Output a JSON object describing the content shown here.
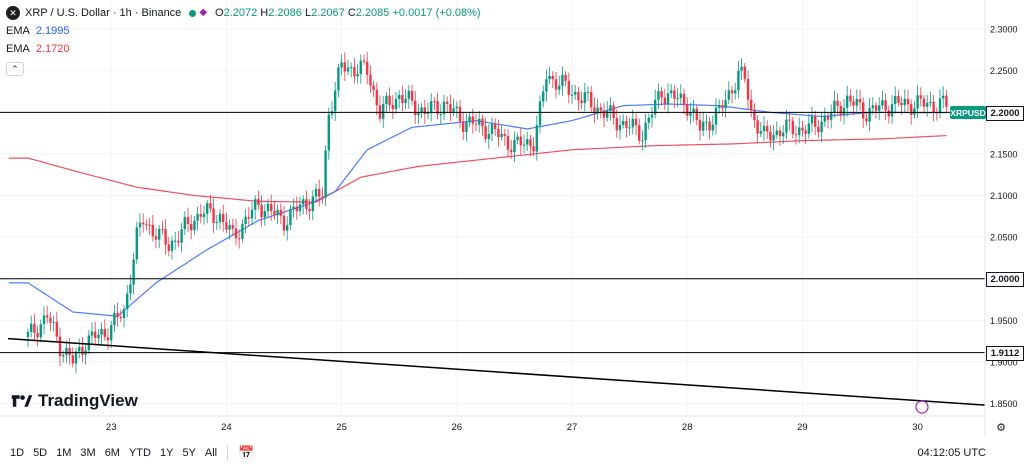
{
  "header": {
    "symbol_title": "XRP / U.S. Dollar · 1h · Binance",
    "open_label": "O",
    "open": "2.2072",
    "high_label": "H",
    "high": "2.2086",
    "low_label": "L",
    "low": "2.2067",
    "close_label": "C",
    "close": "2.2085",
    "change": "+0.0017 (+0.08%)",
    "ema_fast_label": "EMA",
    "ema_fast_value": "2.1995",
    "ema_slow_label": "EMA",
    "ema_slow_value": "2.1720",
    "logo_icon": "xrp-logo-icon"
  },
  "symbol_tag": "XRPUSD",
  "price_tags": [
    {
      "value": "2.2000",
      "price": 2.2
    },
    {
      "value": "2.0000",
      "price": 2.0
    },
    {
      "value": "1.9112",
      "price": 1.9112
    }
  ],
  "brand": "TradingView",
  "toolbar": {
    "timeframes": [
      "1D",
      "5D",
      "1M",
      "3M",
      "6M",
      "YTD",
      "1Y",
      "5Y",
      "All"
    ],
    "clock": "04:12:05 UTC"
  },
  "colors": {
    "up": "#089981",
    "down": "#f23645",
    "ema_fast": "#4a7dff",
    "ema_slow": "#f0505f",
    "hline": "#000000"
  },
  "chart_data": {
    "type": "candlestick",
    "title": "XRP / U.S. Dollar · 1h · Binance",
    "ylim": [
      1.835,
      2.335
    ],
    "y_ticks": [
      "2.3000",
      "2.2500",
      "2.2000",
      "2.1500",
      "2.1000",
      "2.0500",
      "2.0000",
      "1.9500",
      "1.9000",
      "1.8500"
    ],
    "x_ticks": [
      "23",
      "24",
      "25",
      "26",
      "27",
      "28",
      "29",
      "30"
    ],
    "x_tick_index": [
      26,
      62,
      98,
      134,
      170,
      206,
      242,
      278
    ],
    "n_bars": 296,
    "horizontal_lines": [
      2.2,
      2.0,
      1.9112
    ],
    "trendline": {
      "from": [
        0,
        1.928
      ],
      "to": [
        316,
        1.848
      ]
    },
    "candle_keypoints": [
      [
        0,
        1.93
      ],
      [
        6,
        1.955
      ],
      [
        10,
        1.92
      ],
      [
        14,
        1.9
      ],
      [
        18,
        1.925
      ],
      [
        24,
        1.935
      ],
      [
        30,
        1.96
      ],
      [
        34,
        2.05
      ],
      [
        36,
        2.07
      ],
      [
        44,
        2.04
      ],
      [
        54,
        2.08
      ],
      [
        60,
        2.075
      ],
      [
        64,
        2.05
      ],
      [
        72,
        2.09
      ],
      [
        80,
        2.07
      ],
      [
        86,
        2.09
      ],
      [
        92,
        2.1
      ],
      [
        94,
        2.2
      ],
      [
        98,
        2.255
      ],
      [
        106,
        2.25
      ],
      [
        110,
        2.2
      ],
      [
        116,
        2.22
      ],
      [
        124,
        2.2
      ],
      [
        130,
        2.21
      ],
      [
        136,
        2.19
      ],
      [
        144,
        2.18
      ],
      [
        152,
        2.16
      ],
      [
        158,
        2.165
      ],
      [
        160,
        2.2
      ],
      [
        162,
        2.245
      ],
      [
        168,
        2.23
      ],
      [
        176,
        2.21
      ],
      [
        184,
        2.19
      ],
      [
        192,
        2.175
      ],
      [
        198,
        2.225
      ],
      [
        206,
        2.21
      ],
      [
        210,
        2.18
      ],
      [
        216,
        2.2
      ],
      [
        222,
        2.245
      ],
      [
        224,
        2.24
      ],
      [
        226,
        2.2
      ],
      [
        230,
        2.17
      ],
      [
        236,
        2.18
      ],
      [
        244,
        2.18
      ],
      [
        250,
        2.195
      ],
      [
        256,
        2.215
      ],
      [
        262,
        2.2
      ],
      [
        270,
        2.21
      ],
      [
        280,
        2.21
      ],
      [
        287,
        2.2085
      ]
    ],
    "ema_fast_keypoints": [
      [
        0,
        1.995
      ],
      [
        14,
        1.96
      ],
      [
        28,
        1.955
      ],
      [
        40,
        1.995
      ],
      [
        56,
        2.035
      ],
      [
        72,
        2.07
      ],
      [
        88,
        2.09
      ],
      [
        96,
        2.105
      ],
      [
        106,
        2.155
      ],
      [
        120,
        2.182
      ],
      [
        140,
        2.19
      ],
      [
        156,
        2.18
      ],
      [
        170,
        2.19
      ],
      [
        186,
        2.208
      ],
      [
        200,
        2.21
      ],
      [
        216,
        2.208
      ],
      [
        232,
        2.2
      ],
      [
        248,
        2.195
      ],
      [
        264,
        2.2
      ],
      [
        287,
        2.1995
      ]
    ],
    "ema_slow_keypoints": [
      [
        0,
        2.145
      ],
      [
        16,
        2.128
      ],
      [
        34,
        2.11
      ],
      [
        52,
        2.1
      ],
      [
        72,
        2.093
      ],
      [
        90,
        2.092
      ],
      [
        104,
        2.122
      ],
      [
        122,
        2.135
      ],
      [
        146,
        2.145
      ],
      [
        170,
        2.155
      ],
      [
        196,
        2.16
      ],
      [
        220,
        2.162
      ],
      [
        242,
        2.166
      ],
      [
        266,
        2.168
      ],
      [
        287,
        2.172
      ]
    ]
  }
}
